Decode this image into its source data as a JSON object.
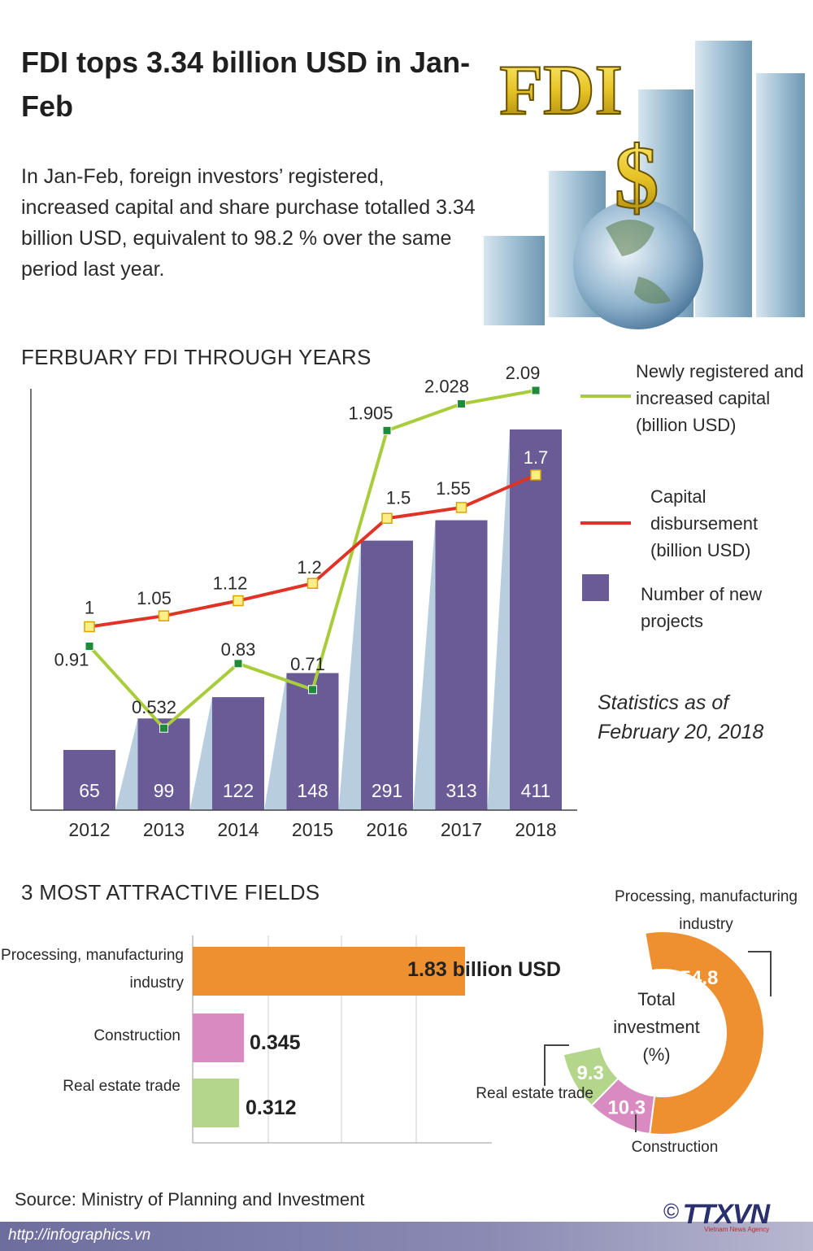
{
  "header": {
    "title": "FDI tops 3.34 billion USD in Jan-Feb",
    "intro": "In Jan-Feb, foreign investors’ registered, increased capital and share purchase totalled 3.34 billion USD, equivalent to 98.2 % over the same period last year.",
    "image_caption": "FDI"
  },
  "colors": {
    "bar": "#6a5a96",
    "green_line": "#a8cc3a",
    "red_line": "#e03326",
    "orange": "#ef9030",
    "pink": "#d98ac0",
    "light_green": "#b3d68a",
    "shadow": "#b8cede"
  },
  "chart_data": [
    {
      "type": "bar",
      "title": "FERBUARY FDI THROUGH YEARS",
      "categories": [
        "2012",
        "2013",
        "2014",
        "2015",
        "2016",
        "2017",
        "2018"
      ],
      "series": [
        {
          "name": "Number of new projects",
          "type": "bar",
          "values": [
            65,
            99,
            122,
            148,
            291,
            313,
            411
          ]
        },
        {
          "name": "Newly registered and increased capital (billion USD)",
          "type": "line",
          "values": [
            0.91,
            0.532,
            0.83,
            0.71,
            1.905,
            2.028,
            2.09
          ]
        },
        {
          "name": "Capital disbursement (billion USD)",
          "type": "line",
          "values": [
            1,
            1.05,
            1.12,
            1.2,
            1.5,
            1.55,
            1.7
          ]
        }
      ],
      "value_labels": {
        "bars": [
          "65",
          "99",
          "122",
          "148",
          "291",
          "313",
          "411"
        ],
        "green": [
          "0.91",
          "0.532",
          "0.83",
          "0.71",
          "1.905",
          "2.028",
          "2.09"
        ],
        "red": [
          "1",
          "1.05",
          "1.12",
          "1.2",
          "1.5",
          "1.55",
          "1.7"
        ]
      },
      "legend": [
        "Newly registered and increased capital (billion USD)",
        "Capital disbursement (billion USD)",
        "Number of new projects"
      ],
      "legend_placement": "right",
      "grid": false
    },
    {
      "type": "bar",
      "orientation": "horizontal",
      "title": "3 MOST ATTRACTIVE FIELDS",
      "categories": [
        "Processing, manufacturing industry",
        "Construction",
        "Real estate trade"
      ],
      "values": [
        1.83,
        0.345,
        0.312
      ],
      "value_labels": [
        "1.83 billion USD",
        "0.345",
        "0.312"
      ],
      "grid": true
    },
    {
      "type": "pie",
      "variant": "donut",
      "center_label": "Total investment (%)",
      "slices": [
        {
          "label": "Processing, manufacturing industry",
          "value": 54.8,
          "text": "54.8"
        },
        {
          "label": "Construction",
          "value": 10.3,
          "text": "10.3"
        },
        {
          "label": "Real estate trade",
          "value": 9.3,
          "text": "9.3"
        }
      ]
    }
  ],
  "notes": {
    "stats_date": "Statistics as of February 20, 2018"
  },
  "footer": {
    "source": "Source: Ministry of Planning and Investment",
    "url": "http://infographics.vn",
    "copyright": "©",
    "logo_text": "TTXVN",
    "logo_sub": "Vietnam News Agency"
  }
}
